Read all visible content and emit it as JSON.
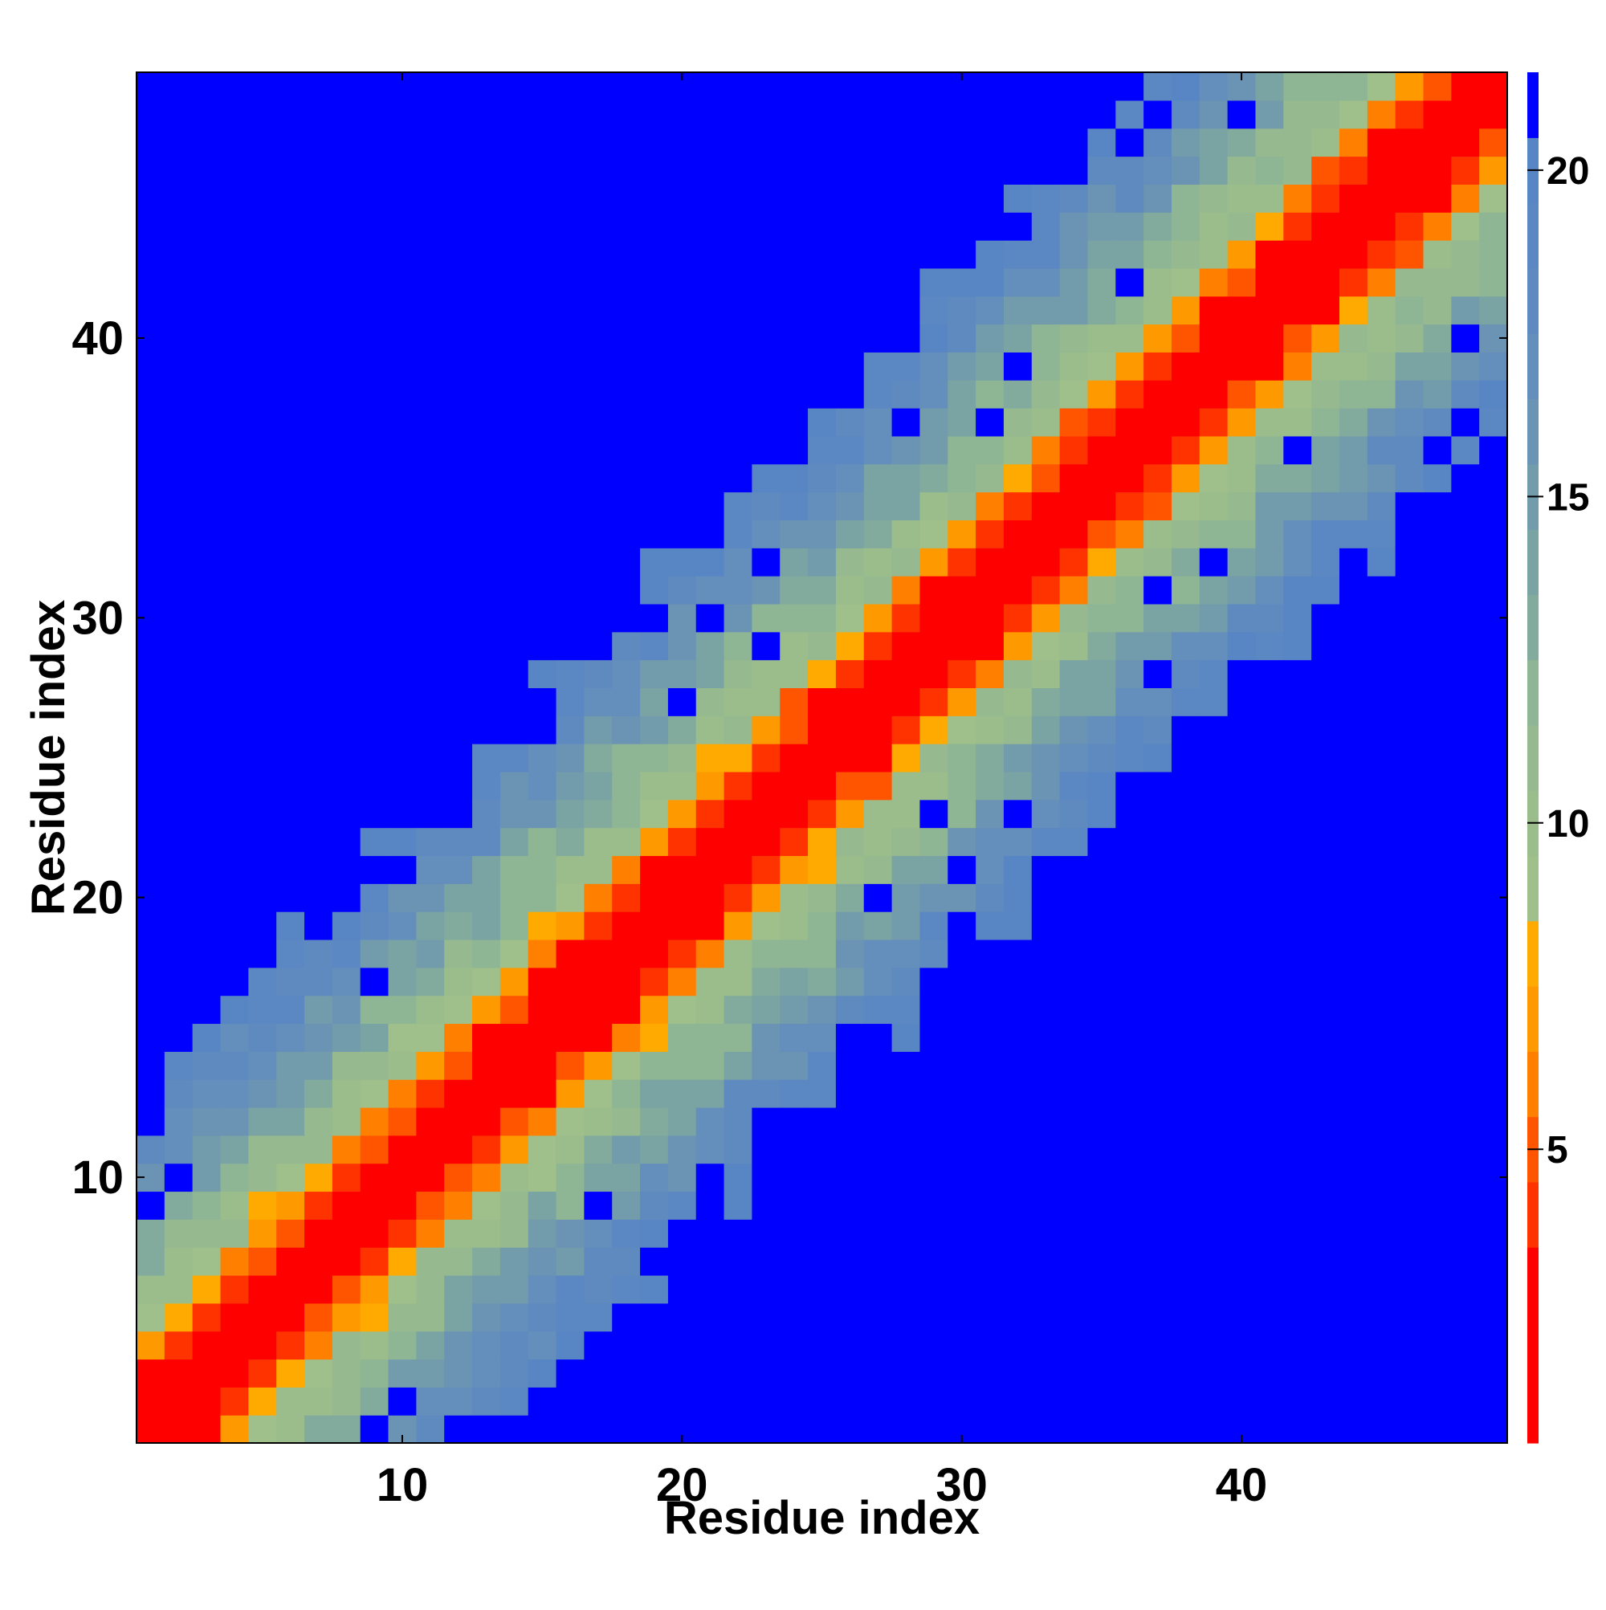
{
  "chart_data": {
    "type": "heatmap",
    "title": "",
    "xlabel": "Residue index",
    "ylabel": "Residue index",
    "n": 49,
    "xlim": [
      0.5,
      49.5
    ],
    "ylim": [
      0.5,
      49.5
    ],
    "x_ticks": [
      10,
      20,
      30,
      40
    ],
    "y_ticks": [
      10,
      20,
      30,
      40
    ],
    "colorbar": {
      "ticks": [
        5,
        10,
        15,
        20
      ],
      "range": [
        0.5,
        21.5
      ],
      "position": "right",
      "levels": [
        {
          "max": 3.5,
          "color": "#ff0000"
        },
        {
          "max": 4.5,
          "color": "#ff3300"
        },
        {
          "max": 5.5,
          "color": "#ff5500"
        },
        {
          "max": 6.5,
          "color": "#ff8000"
        },
        {
          "max": 7.5,
          "color": "#ff9900"
        },
        {
          "max": 8.5,
          "color": "#ffaa00"
        },
        {
          "max": 9.5,
          "color": "#9fbf8b"
        },
        {
          "max": 10.5,
          "color": "#9bbd8c"
        },
        {
          "max": 11.5,
          "color": "#96b98f"
        },
        {
          "max": 12.5,
          "color": "#8eb594"
        },
        {
          "max": 13.5,
          "color": "#82ab9d"
        },
        {
          "max": 14.5,
          "color": "#7aa3a4"
        },
        {
          "max": 15.5,
          "color": "#729bac"
        },
        {
          "max": 16.5,
          "color": "#6a93b4"
        },
        {
          "max": 17.5,
          "color": "#648ebb"
        },
        {
          "max": 18.5,
          "color": "#5f8abf"
        },
        {
          "max": 19.5,
          "color": "#5b87c2"
        },
        {
          "max": 20.5,
          "color": "#5886c4"
        },
        {
          "max": 21.5,
          "color": "#0000ff"
        }
      ]
    },
    "background_value": 21,
    "pattern": "distance-to-diagonal",
    "notes_visible": "Symmetric banded contact-distance map along the main diagonal"
  }
}
